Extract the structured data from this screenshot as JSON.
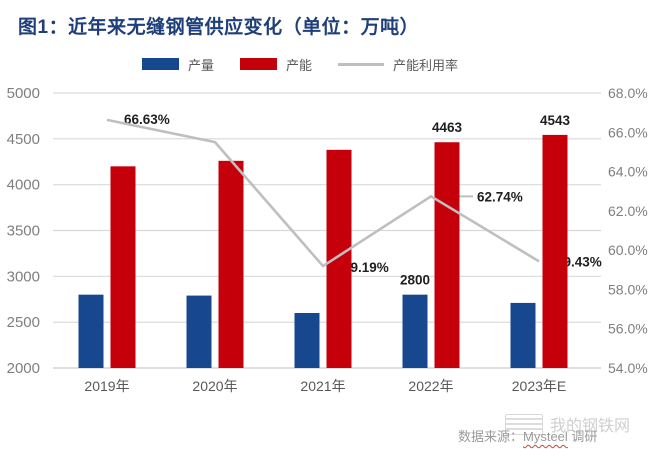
{
  "title": "图1：近年来无缝钢管供应变化（单位：万吨）",
  "footer": {
    "watermark": "我的钢铁网",
    "source_prefix": "数据来源：",
    "source_name": "Mysteel",
    "source_suffix": " 调研"
  },
  "colors": {
    "production_blue": "#17478F",
    "capacity_red": "#C5000B",
    "utilization_gray": "#BFBFBF",
    "title_navy": "#1F3F7A",
    "grid": "#D9D9D9",
    "axis_line": "#C9C9C9",
    "tick_text": "#7F7F7F",
    "xlabel_text": "#595959",
    "data_label": "#1F1F1F"
  },
  "chart_data": {
    "type": "bar",
    "subtype": "grouped bars + line on secondary axis",
    "title": "图1：近年来无缝钢管供应变化（单位：万吨）",
    "categories": [
      "2019年",
      "2020年",
      "2021年",
      "2022年",
      "2023年E"
    ],
    "series": [
      {
        "name": "产量",
        "chart": "bar",
        "axis": "left",
        "color": "#17478F",
        "values": [
          2800,
          2790,
          2600,
          2800,
          2710
        ],
        "data_labels": {
          "3": "2800"
        }
      },
      {
        "name": "产能",
        "chart": "bar",
        "axis": "left",
        "color": "#C5000B",
        "values": [
          4200,
          4260,
          4380,
          4463,
          4543
        ],
        "data_labels": {
          "3": "4463",
          "4": "4543"
        }
      },
      {
        "name": "产能利用率",
        "chart": "line",
        "axis": "right",
        "color": "#BFBFBF",
        "values": [
          66.63,
          65.5,
          59.19,
          62.74,
          59.43
        ],
        "data_labels": {
          "0": "66.63%",
          "2": "59.19%",
          "3": "62.74%",
          "4": "59.43%"
        }
      }
    ],
    "left_axis": {
      "min": 2000,
      "max": 5000,
      "step": 500,
      "ticks": [
        "5000",
        "4500",
        "4000",
        "3500",
        "3000",
        "2500",
        "2000"
      ]
    },
    "right_axis": {
      "min": 54,
      "max": 68,
      "step": 2,
      "ticks": [
        "68.0%",
        "66.0%",
        "64.0%",
        "62.0%",
        "60.0%",
        "58.0%",
        "56.0%",
        "54.0%"
      ]
    },
    "grid": true,
    "legend_position": "top"
  }
}
